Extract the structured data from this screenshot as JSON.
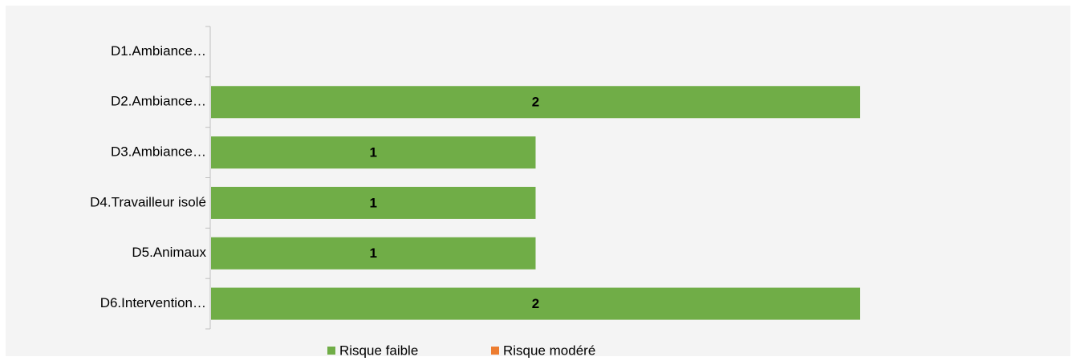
{
  "chart_data": {
    "type": "bar",
    "orientation": "horizontal",
    "stacked": true,
    "categories": [
      "D1.Ambiance…",
      "D2.Ambiance…",
      "D3.Ambiance…",
      "D4.Travailleur isolé",
      "D5.Animaux",
      "D6.Intervention…"
    ],
    "series": [
      {
        "name": "Risque faible",
        "color": "#70ad47",
        "values": [
          null,
          2,
          1,
          1,
          1,
          2
        ]
      },
      {
        "name": "Risque modéré",
        "color": "#ed7d31",
        "values": [
          null,
          null,
          null,
          null,
          null,
          null
        ]
      }
    ],
    "legend": "bottom"
  }
}
